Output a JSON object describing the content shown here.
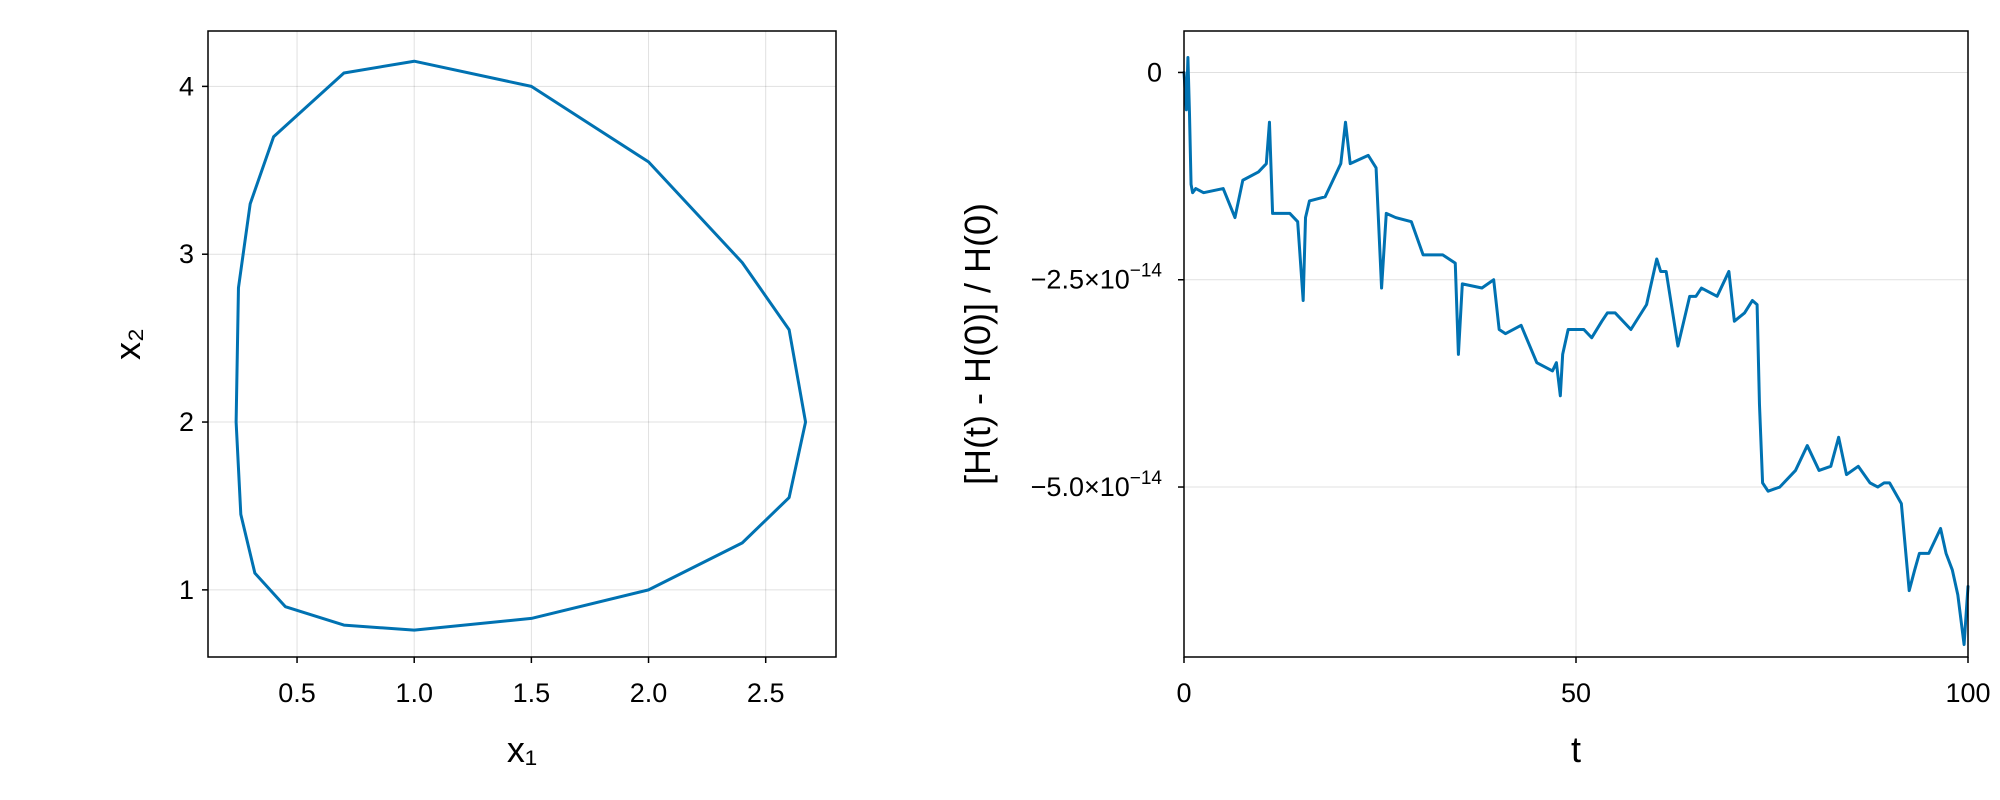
{
  "chart_data": [
    {
      "type": "line",
      "xlabel": "x₁",
      "ylabel": "x₂",
      "xlim": [
        0.12,
        2.8
      ],
      "ylim": [
        0.6,
        4.33
      ],
      "xticks": [
        0.5,
        1.0,
        1.5,
        2.0,
        2.5
      ],
      "xtick_labels": [
        "0.5",
        "1.0",
        "1.5",
        "2.0",
        "2.5"
      ],
      "yticks": [
        1,
        2,
        3,
        4
      ],
      "ytick_labels": [
        "1",
        "2",
        "3",
        "4"
      ],
      "grid": true,
      "color": "#0072b2",
      "series": [
        {
          "x": [
            1.0,
            1.5,
            2.0,
            2.4,
            2.6,
            2.67,
            2.6,
            2.4,
            2.0,
            1.5,
            1.0,
            0.7,
            0.4,
            0.3,
            0.25,
            0.24,
            0.26,
            0.32,
            0.45,
            0.7,
            1.0
          ],
          "y": [
            0.76,
            0.83,
            1.0,
            1.28,
            1.55,
            2.0,
            2.55,
            2.95,
            3.55,
            4.0,
            4.15,
            4.08,
            3.7,
            3.3,
            2.8,
            2.0,
            1.45,
            1.1,
            0.9,
            0.79,
            0.76
          ]
        }
      ]
    },
    {
      "type": "line",
      "xlabel": "t",
      "ylabel": "[H(t) - H(0)] / H(0)",
      "xlim": [
        0,
        100
      ],
      "ylim": [
        -7.05e-14,
        5e-15
      ],
      "xticks": [
        0,
        50,
        100
      ],
      "xtick_labels": [
        "0",
        "50",
        "100"
      ],
      "yticks": [
        0,
        -2.5e-14,
        -5e-14
      ],
      "ytick_labels": [
        "0",
        "−2.5×10",
        "−5.0×10"
      ],
      "ytick_exponents": [
        "",
        "−14",
        "−14"
      ],
      "grid": true,
      "color": "#0072b2",
      "series": [
        {
          "x": [
            0,
            0.3,
            0.5,
            0.7,
            0.9,
            1.1,
            1.5,
            2.5,
            5.0,
            6.5,
            7.5,
            9.5,
            10.5,
            10.9,
            11.3,
            13.5,
            14.5,
            15.2,
            15.5,
            16,
            18,
            20.0,
            20.6,
            21.2,
            23.5,
            24.5,
            25.2,
            25.8,
            27,
            29,
            30.5,
            31.5,
            33,
            34.6,
            35.0,
            35.5,
            38,
            39.5,
            40.2,
            41,
            43,
            45,
            47,
            47.5,
            48,
            48.3,
            49,
            51,
            52,
            53.3,
            54,
            55,
            57,
            59,
            60.3,
            60.8,
            61.5,
            63,
            64.5,
            65.3,
            66,
            68,
            69.5,
            70.2,
            71.5,
            72.5,
            73.1,
            73.4,
            73.8,
            74.5,
            76,
            78,
            79.5,
            81,
            82.5,
            83.5,
            84.5,
            86,
            87.5,
            88.5,
            89.3,
            90,
            91.5,
            92.5,
            93.2,
            93.8,
            95,
            96.5,
            97.2,
            98,
            98.7,
            99.5,
            100
          ],
          "y": [
            0,
            -0.45,
            0.18,
            -0.5,
            -1.35,
            -1.45,
            -1.4,
            -1.45,
            -1.4,
            -1.75,
            -1.3,
            -1.2,
            -1.1,
            -0.6,
            -1.7,
            -1.7,
            -1.8,
            -2.75,
            -1.75,
            -1.55,
            -1.5,
            -1.1,
            -0.6,
            -1.1,
            -1.0,
            -1.15,
            -2.6,
            -1.7,
            -1.75,
            -1.8,
            -2.2,
            -2.2,
            -2.2,
            -2.3,
            -3.4,
            -2.55,
            -2.6,
            -2.5,
            -3.1,
            -3.15,
            -3.05,
            -3.5,
            -3.6,
            -3.5,
            -3.9,
            -3.4,
            -3.1,
            -3.1,
            -3.2,
            -3.0,
            -2.9,
            -2.9,
            -3.1,
            -2.8,
            -2.25,
            -2.4,
            -2.4,
            -3.3,
            -2.7,
            -2.7,
            -2.6,
            -2.7,
            -2.4,
            -3.0,
            -2.9,
            -2.75,
            -2.8,
            -4.0,
            -4.95,
            -5.05,
            -5.0,
            -4.8,
            -4.5,
            -4.8,
            -4.75,
            -4.4,
            -4.85,
            -4.75,
            -4.95,
            -5.0,
            -4.95,
            -4.95,
            -5.2,
            -6.25,
            -6.0,
            -5.8,
            -5.8,
            -5.5,
            -5.8,
            -6.0,
            -6.3,
            -6.9,
            -6.2
          ]
        }
      ]
    }
  ]
}
